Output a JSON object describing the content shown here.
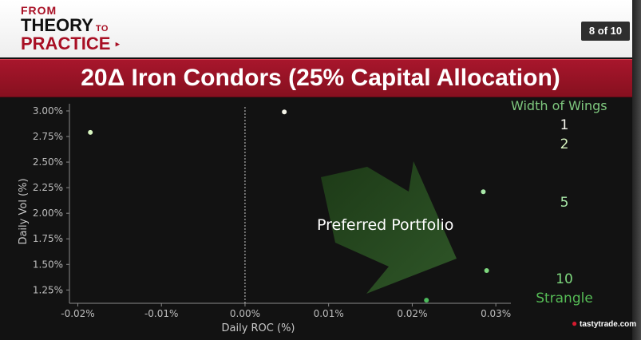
{
  "header": {
    "logo_line1": "FROM",
    "logo_line2": "THEORY",
    "logo_line2_small": "TO",
    "logo_line3": "PRACTICE",
    "page_indicator": "8 of 10"
  },
  "title": "20Δ Iron Condors (25% Capital Allocation)",
  "watermark": "tastytrade.com",
  "chart_data": {
    "type": "scatter",
    "xlabel": "Daily ROC (%)",
    "ylabel": "Daily Vol (%)",
    "xlim": [
      -0.021,
      0.0318
    ],
    "ylim": [
      1.12,
      3.07
    ],
    "x_ticks": [
      -0.02,
      -0.01,
      0.0,
      0.01,
      0.02,
      0.03
    ],
    "x_tick_labels": [
      "-0.02%",
      "-0.01%",
      "0.00%",
      "0.01%",
      "0.02%",
      "0.03%"
    ],
    "y_ticks": [
      1.25,
      1.5,
      1.75,
      2.0,
      2.25,
      2.5,
      2.75,
      3.0
    ],
    "y_tick_labels": [
      "1.25%",
      "1.50%",
      "1.75%",
      "2.00%",
      "2.25%",
      "2.50%",
      "2.75%",
      "3.00%"
    ],
    "vertical_reference_line": 0.0,
    "points": [
      {
        "x": -0.0185,
        "y": 2.79,
        "color": "#d8f5c0"
      },
      {
        "x": 0.0047,
        "y": 2.99,
        "color": "#f4f4e8"
      },
      {
        "x": 0.0285,
        "y": 2.21,
        "color": "#a8e8a8"
      },
      {
        "x": 0.0289,
        "y": 1.44,
        "color": "#7ed87e"
      },
      {
        "x": 0.0217,
        "y": 1.15,
        "color": "#4cbb5c"
      }
    ],
    "legend": {
      "title": "Width of Wings",
      "title_color": "#7fc97f",
      "entries": [
        {
          "label": "1",
          "color": "#f6f6ee"
        },
        {
          "label": "2",
          "color": "#d8f5c0"
        },
        {
          "label": "5",
          "color": "#a8e8a8"
        },
        {
          "label": "10",
          "color": "#7ed87e"
        },
        {
          "label": "Strangle",
          "color": "#55bb55"
        }
      ]
    },
    "annotation": "Preferred Portfolio"
  }
}
